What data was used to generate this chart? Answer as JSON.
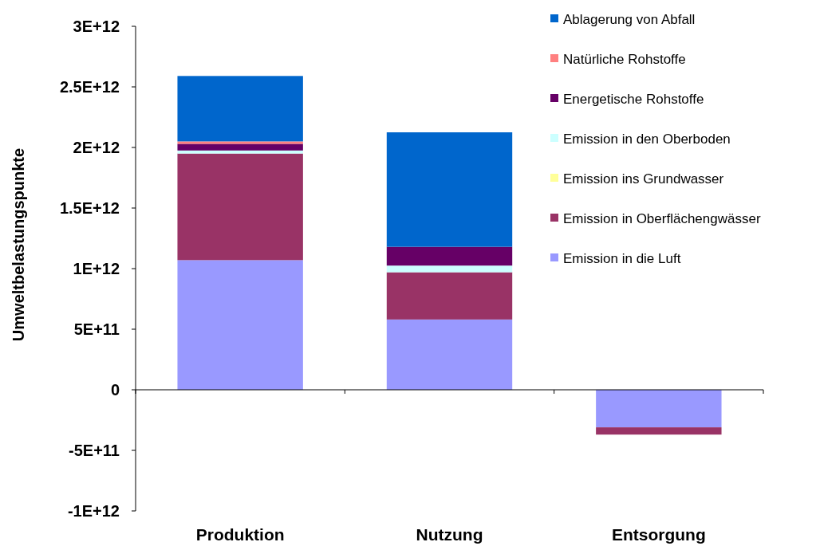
{
  "chart_data": {
    "type": "bar",
    "stacked": true,
    "ylabel": "Umweltbelastungspunkte",
    "categories": [
      "Produktion",
      "Nutzung",
      "Entsorgung"
    ],
    "series": [
      {
        "name": "Emission in die Luft",
        "color": "#9999ff",
        "values": [
          1070000000000.0,
          580000000000.0,
          -310000000000.0
        ]
      },
      {
        "name": "Emission in Oberflächengwässer",
        "color": "#993366",
        "values": [
          880000000000.0,
          390000000000.0,
          -60000000000.0
        ]
      },
      {
        "name": "Emission ins Grundwasser",
        "color": "#ffff99",
        "values": [
          0,
          0,
          0
        ]
      },
      {
        "name": "Emission in den Oberboden",
        "color": "#ccffff",
        "values": [
          25000000000.0,
          55000000000.0,
          0
        ]
      },
      {
        "name": "Energetische Rohstoffe",
        "color": "#660066",
        "values": [
          55000000000.0,
          155000000000.0,
          0
        ]
      },
      {
        "name": "Natürliche Rohstoffe",
        "color": "#ff8080",
        "values": [
          20000000000.0,
          0,
          0
        ]
      },
      {
        "name": "Ablagerung von Abfall",
        "color": "#0066cc",
        "values": [
          540000000000.0,
          945000000000.0,
          0
        ]
      }
    ],
    "ylim": [
      -1000000000000.0,
      3000000000000.0
    ],
    "yticks": [
      {
        "value": -1000000000000.0,
        "label": "-1E+12"
      },
      {
        "value": -500000000000.0,
        "label": "-5E+11"
      },
      {
        "value": 0,
        "label": "0"
      },
      {
        "value": 500000000000.0,
        "label": "5E+11"
      },
      {
        "value": 1000000000000.0,
        "label": "1E+12"
      },
      {
        "value": 1500000000000.0,
        "label": "1.5E+12"
      },
      {
        "value": 2000000000000.0,
        "label": "2E+12"
      },
      {
        "value": 2500000000000.0,
        "label": "2.5E+12"
      },
      {
        "value": 3000000000000.0,
        "label": "3E+12"
      }
    ],
    "legend": "right"
  }
}
